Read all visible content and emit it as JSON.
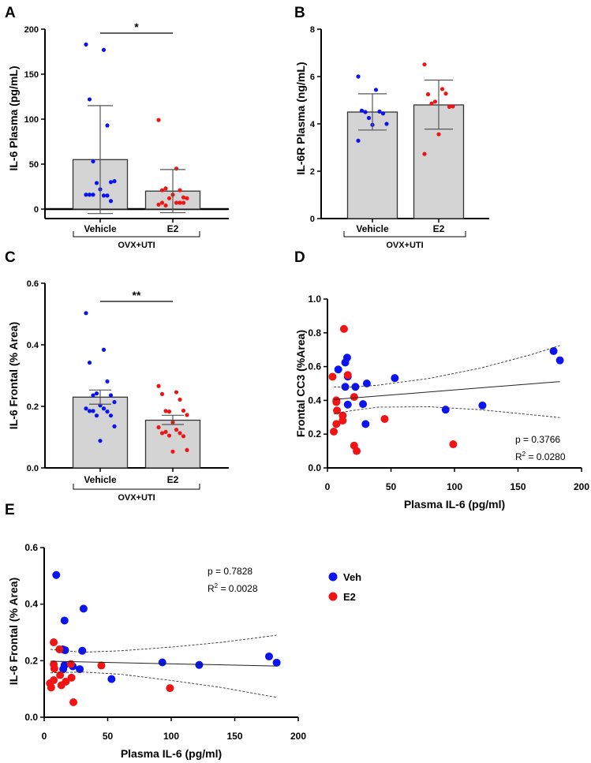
{
  "colors": {
    "vehicle": "#0a14f0",
    "e2": "#f01414",
    "bar_fill": "#d4d4d4",
    "axis": "#000000",
    "error": "#555555"
  },
  "chart_data": [
    {
      "panel": "A",
      "type": "bar",
      "ylabel": "IL-6 Plasma (pg/mL)",
      "ylim": [
        -7,
        200
      ],
      "yticks": [
        0,
        50,
        100,
        150,
        200
      ],
      "categories": [
        "Vehicle",
        "E2"
      ],
      "group_label": "OVX+UTI",
      "significance": "*",
      "series": [
        {
          "name": "Vehicle",
          "mean": 55,
          "err_upper": 115,
          "err_lower": -5,
          "points": [
            183,
            177,
            122,
            93,
            53,
            30,
            29,
            31,
            22,
            16,
            15,
            16,
            15,
            16,
            9
          ]
        },
        {
          "name": "E2",
          "mean": 20,
          "err_upper": 44,
          "err_lower": -4,
          "points": [
            99,
            45,
            21,
            21,
            23,
            13,
            12,
            12,
            16,
            5,
            7,
            7,
            7,
            4,
            7
          ]
        }
      ]
    },
    {
      "panel": "B",
      "type": "bar",
      "ylabel": "IL-6R Plasma (ng/mL)",
      "ylim": [
        0,
        8
      ],
      "yticks": [
        0,
        2,
        4,
        6,
        8
      ],
      "categories": [
        "Vehicle",
        "E2"
      ],
      "group_label": "OVX+UTI",
      "significance": "",
      "series": [
        {
          "name": "Vehicle",
          "mean": 4.5,
          "err_upper": 5.27,
          "err_lower": 3.74,
          "points": [
            6.0,
            5.44,
            4.56,
            4.52,
            4.5,
            4.44,
            4.25,
            4.0,
            3.96,
            3.29
          ]
        },
        {
          "name": "E2",
          "mean": 4.8,
          "err_upper": 5.85,
          "err_lower": 3.78,
          "points": [
            6.51,
            5.47,
            5.25,
            5.28,
            4.86,
            4.72,
            4.94,
            4.74,
            3.56,
            2.73
          ]
        }
      ]
    },
    {
      "panel": "C",
      "type": "bar",
      "ylabel": "IL-6 Frontal (% Area)",
      "ylim": [
        0,
        0.6
      ],
      "yticks": [
        "0.0",
        "0.2",
        "0.4",
        "0.6"
      ],
      "categories": [
        "Vehicle",
        "E2"
      ],
      "group_label": "OVX+UTI",
      "significance": "**",
      "series": [
        {
          "name": "Vehicle",
          "mean": 0.23,
          "err_upper": 0.253,
          "err_lower": 0.207,
          "points": [
            0.503,
            0.384,
            0.342,
            0.281,
            0.236,
            0.236,
            0.242,
            0.214,
            0.203,
            0.193,
            0.193,
            0.185,
            0.183,
            0.185,
            0.17,
            0.17,
            0.135,
            0.088
          ]
        },
        {
          "name": "E2",
          "mean": 0.155,
          "err_upper": 0.171,
          "err_lower": 0.141,
          "points": [
            0.266,
            0.246,
            0.24,
            0.222,
            0.185,
            0.186,
            0.183,
            0.172,
            0.148,
            0.132,
            0.124,
            0.113,
            0.113,
            0.117,
            0.103,
            0.105,
            0.058,
            0.053
          ]
        }
      ]
    },
    {
      "panel": "D",
      "type": "scatter",
      "xlabel": "Plasma IL-6 (pg/ml)",
      "ylabel": "Frontal CC3 (%Area)",
      "xlim": [
        0,
        200
      ],
      "ylim": [
        0,
        1.0
      ],
      "xticks": [
        "0",
        "50",
        "100",
        "150",
        "200"
      ],
      "yticks": [
        "0.0",
        "0.2",
        "0.4",
        "0.6",
        "0.8",
        "1.0"
      ],
      "stats": {
        "p": "p = 0.3766",
        "r2_prefix": "R",
        "r2_sup": "2",
        "r2_value": " = 0.0280"
      },
      "fit": {
        "x": [
          5,
          183
        ],
        "y": [
          0.405,
          0.511
        ]
      },
      "ci_upper": {
        "x": [
          5,
          20,
          40,
          80,
          120,
          160,
          183
        ],
        "y": [
          0.48,
          0.478,
          0.49,
          0.53,
          0.59,
          0.67,
          0.725
        ]
      },
      "ci_lower": {
        "x": [
          5,
          20,
          40,
          80,
          120,
          160,
          183
        ],
        "y": [
          0.32,
          0.34,
          0.36,
          0.362,
          0.345,
          0.315,
          0.298
        ]
      },
      "series": [
        {
          "name": "Veh",
          "x": [
            178,
            183,
            8.5,
            15.5,
            14,
            16,
            14,
            22,
            31,
            53,
            16,
            28,
            30,
            93,
            122
          ],
          "y": [
            0.692,
            0.637,
            0.583,
            0.653,
            0.624,
            0.541,
            0.48,
            0.48,
            0.5,
            0.532,
            0.375,
            0.378,
            0.26,
            0.345,
            0.37
          ]
        },
        {
          "name": "E2",
          "x": [
            13,
            4,
            16,
            7,
            7,
            21,
            7.5,
            12,
            12,
            7,
            5,
            21,
            23,
            45,
            99
          ],
          "y": [
            0.823,
            0.54,
            0.55,
            0.4,
            0.39,
            0.42,
            0.34,
            0.31,
            0.28,
            0.26,
            0.215,
            0.132,
            0.1,
            0.29,
            0.14
          ]
        }
      ]
    },
    {
      "panel": "E",
      "type": "scatter",
      "xlabel": "Plasma IL-6 (pg/ml)",
      "ylabel": "IL-6 Frontal (% Area)",
      "xlim": [
        0,
        200
      ],
      "ylim": [
        0,
        0.6
      ],
      "xticks": [
        "0",
        "50",
        "100",
        "150",
        "200"
      ],
      "yticks": [
        "0.0",
        "0.2",
        "0.4",
        "0.6"
      ],
      "stats": {
        "p": "p = 0.7828",
        "r2_prefix": "R",
        "r2_sup": "2",
        "r2_value": " = 0.0028"
      },
      "legend": {
        "position": "right",
        "entries": [
          "Veh",
          "E2"
        ]
      },
      "fit": {
        "x": [
          5,
          183
        ],
        "y": [
          0.198,
          0.181
        ]
      },
      "ci_upper": {
        "x": [
          5,
          30,
          60,
          100,
          140,
          183
        ],
        "y": [
          0.24,
          0.23,
          0.235,
          0.248,
          0.265,
          0.29
        ]
      },
      "ci_lower": {
        "x": [
          5,
          30,
          60,
          100,
          140,
          183
        ],
        "y": [
          0.157,
          0.16,
          0.152,
          0.13,
          0.105,
          0.07
        ]
      },
      "series": [
        {
          "name": "Veh",
          "x": [
            9.5,
            31,
            16,
            30,
            16.5,
            14.5,
            16,
            22.5,
            28,
            15,
            53,
            93,
            122,
            177,
            183
          ],
          "y": [
            0.503,
            0.384,
            0.342,
            0.235,
            0.237,
            0.24,
            0.184,
            0.18,
            0.17,
            0.17,
            0.135,
            0.194,
            0.185,
            0.215,
            0.193
          ]
        },
        {
          "name": "E2",
          "x": [
            7.5,
            12,
            7.5,
            8,
            21,
            45,
            12.5,
            21.5,
            7.5,
            17,
            13.5,
            4.5,
            5.5,
            23,
            99
          ],
          "y": [
            0.265,
            0.24,
            0.187,
            0.172,
            0.188,
            0.183,
            0.149,
            0.14,
            0.131,
            0.126,
            0.113,
            0.12,
            0.105,
            0.053,
            0.103
          ]
        }
      ]
    }
  ]
}
